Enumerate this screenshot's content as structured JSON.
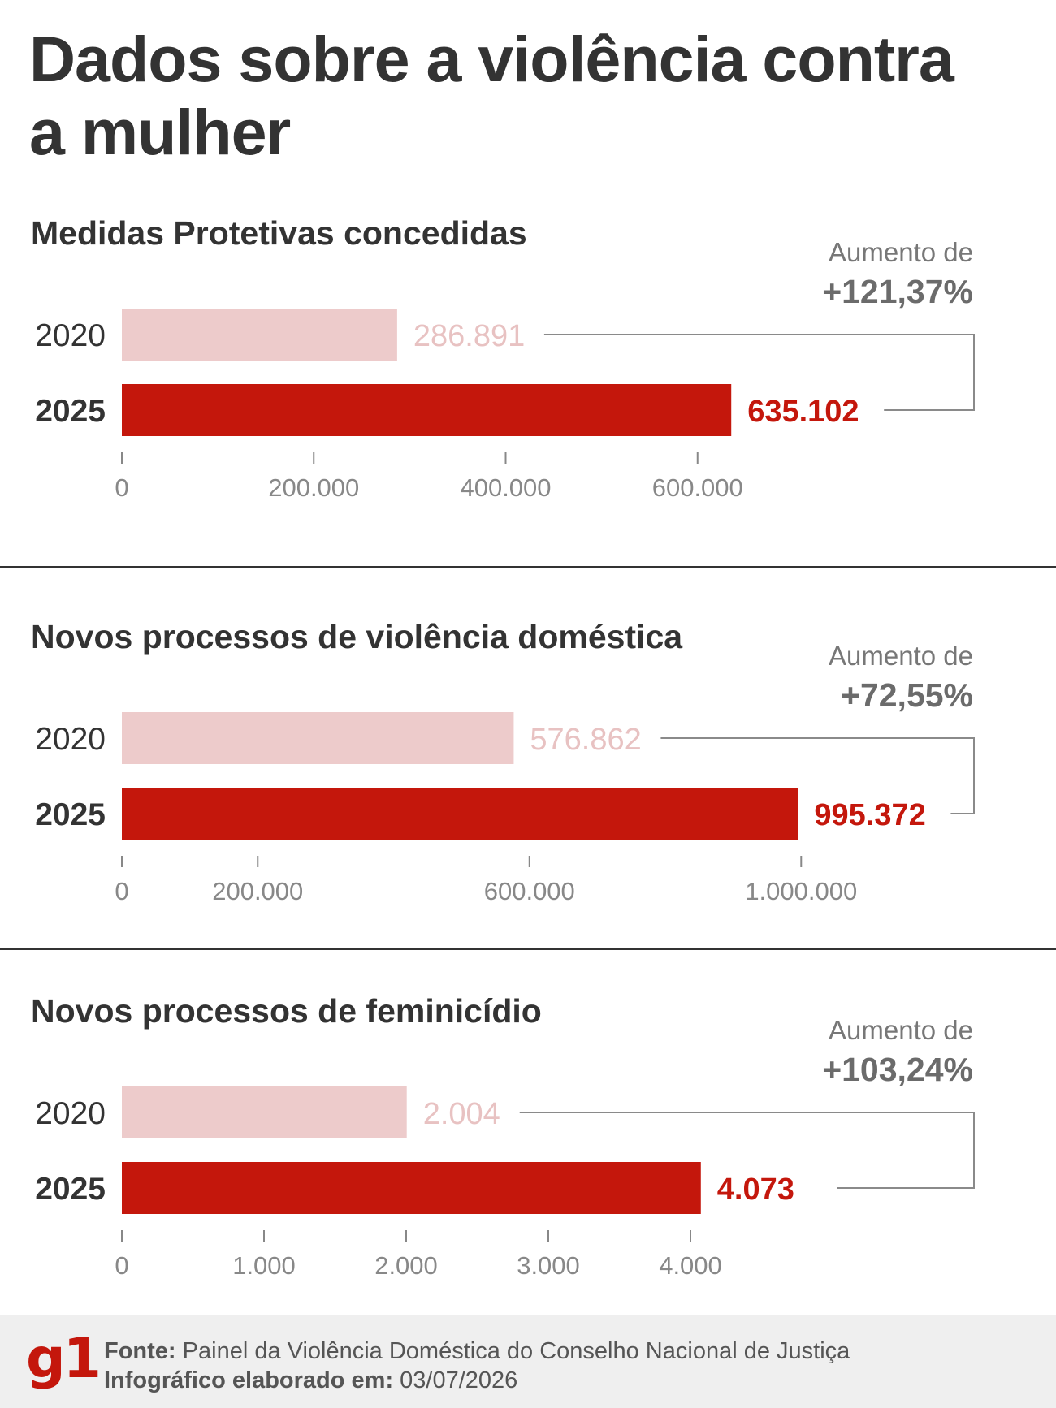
{
  "title": "Dados sobre a violência contra a mulher",
  "colors": {
    "bar_2020": "#edcbcb",
    "bar_2025": "#c4170c",
    "text": "#333333",
    "axis": "#777777"
  },
  "chart_data": [
    {
      "type": "bar",
      "orientation": "horizontal",
      "title": "Medidas Protetivas concedidas",
      "categories": [
        "2020",
        "2025"
      ],
      "values": [
        286891,
        635102
      ],
      "value_labels": [
        "286.891",
        "635.102"
      ],
      "xlim": [
        0,
        800000
      ],
      "ticks": [
        0,
        200000,
        400000,
        600000
      ],
      "tick_labels": [
        "0",
        "200.000",
        "400.000",
        "600.000"
      ],
      "annotation_label": "Aumento de",
      "annotation_value": "+121,37%"
    },
    {
      "type": "bar",
      "orientation": "horizontal",
      "title": "Novos processos de violência doméstica",
      "categories": [
        "2020",
        "2025"
      ],
      "values": [
        576862,
        995372
      ],
      "value_labels": [
        "576.862",
        "995.372"
      ],
      "xlim": [
        0,
        1130000
      ],
      "ticks": [
        0,
        200000,
        600000,
        1000000
      ],
      "tick_labels": [
        "0",
        "200.000",
        "600.000",
        "1.000.000"
      ],
      "annotation_label": "Aumento de",
      "annotation_value": "+72,55%"
    },
    {
      "type": "bar",
      "orientation": "horizontal",
      "title": "Novos processos de feminicídio",
      "categories": [
        "2020",
        "2025"
      ],
      "values": [
        2004,
        4073
      ],
      "value_labels": [
        "2.004",
        "4.073"
      ],
      "xlim": [
        0,
        5400
      ],
      "ticks": [
        0,
        1000,
        2000,
        3000,
        4000
      ],
      "tick_labels": [
        "0",
        "1.000",
        "2.000",
        "3.000",
        "4.000"
      ],
      "annotation_label": "Aumento de",
      "annotation_value": "+103,24%"
    }
  ],
  "footer": {
    "logo": "g1",
    "source_label": "Fonte:",
    "source_text": "Painel da Violência Doméstica do Conselho Nacional de Justiça",
    "date_label": "Infográfico elaborado em:",
    "date_text": "03/07/2026"
  }
}
